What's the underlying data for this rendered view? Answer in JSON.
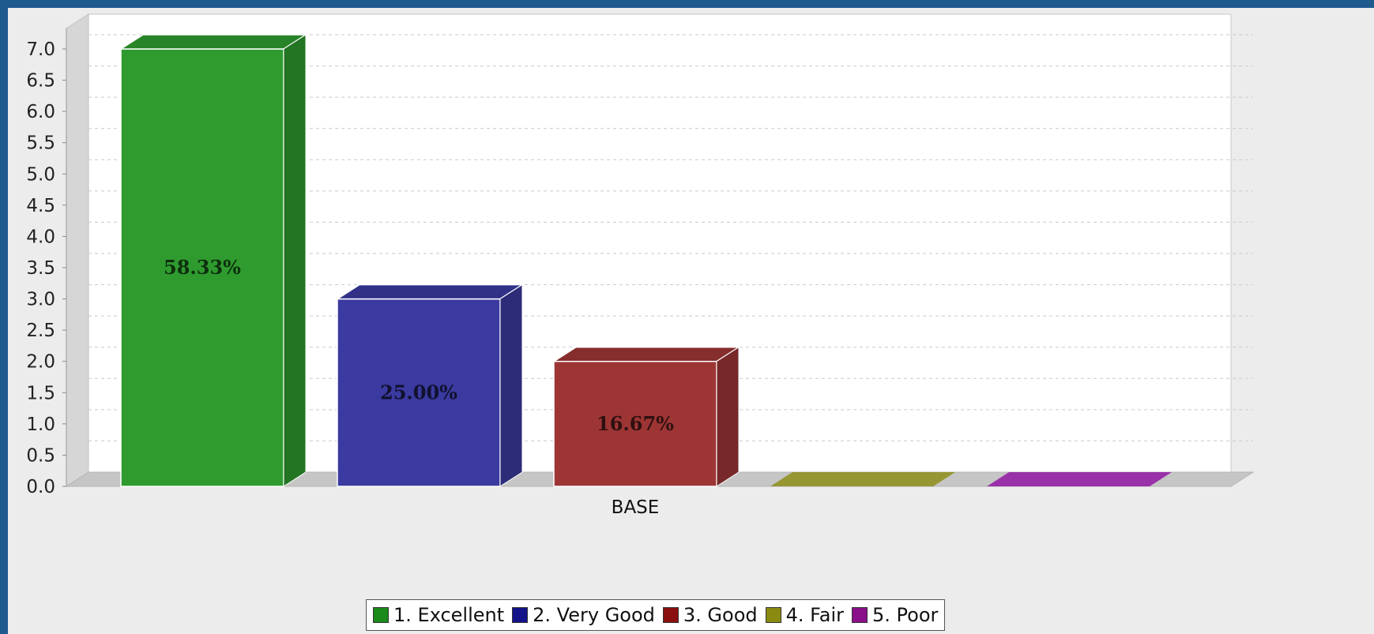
{
  "chart_data": {
    "type": "bar",
    "style": "3d",
    "categories": [
      "BASE"
    ],
    "series": [
      {
        "name": "1. Excellent",
        "values": [
          7
        ],
        "label": "58.33%",
        "color": "#2f9b2f",
        "legend_color": "#1a8a1a"
      },
      {
        "name": "2. Very Good",
        "values": [
          3
        ],
        "label": "25.00%",
        "color": "#3a3aa0",
        "legend_color": "#14148a"
      },
      {
        "name": "3. Good",
        "values": [
          2
        ],
        "label": "16.67%",
        "color": "#9e3535",
        "legend_color": "#8a1010"
      },
      {
        "name": "4. Fair",
        "values": [
          0
        ],
        "label": "",
        "color": "#969632",
        "legend_color": "#8a8a10"
      },
      {
        "name": "5. Poor",
        "values": [
          0
        ],
        "label": "",
        "color": "#9932a8",
        "legend_color": "#8a108a"
      }
    ],
    "yticks": [
      "0.0",
      "0.5",
      "1.0",
      "1.5",
      "2.0",
      "2.5",
      "3.0",
      "3.5",
      "4.0",
      "4.5",
      "5.0",
      "5.5",
      "6.0",
      "6.5",
      "7.0"
    ],
    "ylim": [
      0,
      7.5
    ],
    "grid": true,
    "legend_position": "bottom",
    "title": "",
    "xlabel": "",
    "ylabel": ""
  }
}
